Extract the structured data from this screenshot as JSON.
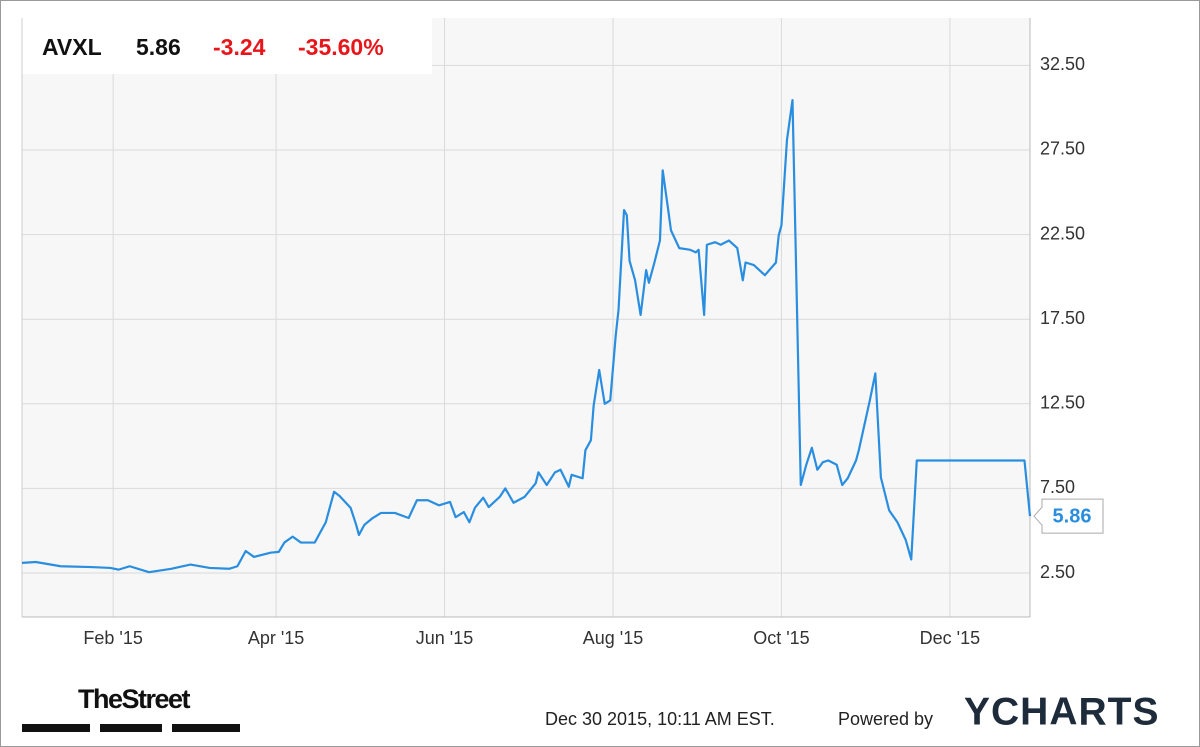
{
  "chart_data": {
    "type": "line",
    "header": {
      "ticker": "AVXL",
      "change": "-3.24",
      "change_percent": "-35.60%"
    },
    "footer": {
      "brand": "TheStreet",
      "timestamp": "Dec 30 2015, 10:11 AM EST.",
      "powered_by": "Powered by",
      "logo": "YCHARTS"
    },
    "x": [
      "2014-12-30",
      "2015-01-04",
      "2015-01-13",
      "2015-01-24",
      "2015-01-31",
      "2015-02-03",
      "2015-02-07",
      "2015-02-14",
      "2015-02-22",
      "2015-03-01",
      "2015-03-08",
      "2015-03-15",
      "2015-03-18",
      "2015-03-21",
      "2015-03-24",
      "2015-03-30",
      "2015-04-02",
      "2015-04-04",
      "2015-04-07",
      "2015-04-10",
      "2015-04-15",
      "2015-04-19",
      "2015-04-22",
      "2015-04-24",
      "2015-04-28",
      "2015-04-30",
      "2015-05-01",
      "2015-05-03",
      "2015-05-06",
      "2015-05-09",
      "2015-05-14",
      "2015-05-19",
      "2015-05-22",
      "2015-05-26",
      "2015-05-30",
      "2015-06-03",
      "2015-06-05",
      "2015-06-08",
      "2015-06-10",
      "2015-06-12",
      "2015-06-15",
      "2015-06-17",
      "2015-06-21",
      "2015-06-23",
      "2015-06-26",
      "2015-06-30",
      "2015-07-04",
      "2015-07-05",
      "2015-07-08",
      "2015-07-11",
      "2015-07-13",
      "2015-07-16",
      "2015-07-17",
      "2015-07-20",
      "2015-07-21",
      "2015-07-22",
      "2015-07-24",
      "2015-07-25",
      "2015-07-27",
      "2015-07-29",
      "2015-07-31",
      "2015-08-02",
      "2015-08-03",
      "2015-08-05",
      "2015-08-06",
      "2015-08-07",
      "2015-08-09",
      "2015-08-11",
      "2015-08-13",
      "2015-08-14",
      "2015-08-16",
      "2015-08-18",
      "2015-08-19",
      "2015-08-21",
      "2015-08-22",
      "2015-08-25",
      "2015-08-29",
      "2015-08-31",
      "2015-09-01",
      "2015-09-03",
      "2015-09-04",
      "2015-09-07",
      "2015-09-09",
      "2015-09-12",
      "2015-09-15",
      "2015-09-17",
      "2015-09-18",
      "2015-09-21",
      "2015-09-25",
      "2015-09-29",
      "2015-09-30",
      "2015-10-01",
      "2015-10-03",
      "2015-10-05",
      "2015-10-08",
      "2015-10-10",
      "2015-10-12",
      "2015-10-14",
      "2015-10-16",
      "2015-10-18",
      "2015-10-21",
      "2015-10-23",
      "2015-10-25",
      "2015-10-28",
      "2015-10-29",
      "2015-11-02",
      "2015-11-04",
      "2015-11-06",
      "2015-11-09",
      "2015-11-12",
      "2015-11-15",
      "2015-11-17",
      "2015-11-19",
      "2015-12-28",
      "2015-12-30"
    ],
    "series": [
      {
        "name": "AVXL",
        "color": "#2a8ee0",
        "values": [
          3.1,
          3.15,
          2.9,
          2.85,
          2.8,
          2.7,
          2.9,
          2.55,
          2.75,
          3.0,
          2.8,
          2.75,
          2.9,
          3.8,
          3.45,
          3.7,
          3.75,
          4.3,
          4.65,
          4.3,
          4.3,
          5.5,
          7.3,
          7.05,
          6.35,
          5.35,
          4.75,
          5.35,
          5.75,
          6.05,
          6.05,
          5.75,
          6.8,
          6.8,
          6.5,
          6.7,
          5.8,
          6.1,
          5.5,
          6.35,
          6.95,
          6.4,
          7.0,
          7.5,
          6.65,
          7.0,
          7.8,
          8.45,
          7.7,
          8.45,
          8.6,
          7.6,
          8.3,
          8.15,
          8.1,
          9.75,
          10.35,
          12.4,
          14.5,
          12.5,
          12.7,
          16.55,
          18.05,
          23.95,
          23.65,
          20.95,
          19.8,
          17.75,
          20.4,
          19.65,
          20.85,
          22.15,
          26.3,
          23.95,
          22.75,
          21.7,
          21.6,
          21.45,
          21.6,
          17.75,
          21.9,
          22.05,
          21.9,
          22.15,
          21.7,
          19.8,
          20.85,
          20.7,
          20.1,
          20.85,
          22.45,
          23.05,
          28.1,
          30.45,
          7.7,
          8.9,
          9.9,
          8.6,
          9.05,
          9.15,
          8.9,
          7.7,
          8.1,
          9.15,
          9.75,
          12.7,
          14.3,
          8.15,
          6.2,
          5.5,
          4.45,
          3.3,
          9.15,
          9.15,
          5.86
        ]
      }
    ],
    "xlim": [
      "2014-12-30",
      "2015-12-30"
    ],
    "xticks": [
      {
        "value": "2015-02-01",
        "label": "Feb '15"
      },
      {
        "value": "2015-04-01",
        "label": "Apr '15"
      },
      {
        "value": "2015-06-01",
        "label": "Jun '15"
      },
      {
        "value": "2015-08-01",
        "label": "Aug '15"
      },
      {
        "value": "2015-10-01",
        "label": "Oct '15"
      },
      {
        "value": "2015-12-01",
        "label": "Dec '15"
      }
    ],
    "ylim": [
      -0.1,
      35.3
    ],
    "yticks": [
      {
        "value": 2.5,
        "label": "2.50"
      },
      {
        "value": 7.5,
        "label": "7.50"
      },
      {
        "value": 12.5,
        "label": "12.50"
      },
      {
        "value": 17.5,
        "label": "17.50"
      },
      {
        "value": 22.5,
        "label": "22.50"
      },
      {
        "value": 27.5,
        "label": "27.50"
      },
      {
        "value": 32.5,
        "label": "32.50"
      }
    ],
    "grid": true
  }
}
